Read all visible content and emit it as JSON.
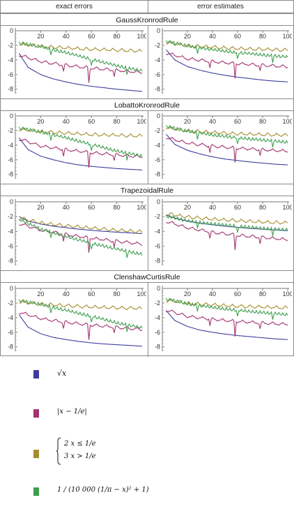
{
  "headers": {
    "exact": "exact errors",
    "estimate": "error estimates"
  },
  "rules": [
    "GaussKronrodRule",
    "LobattoKronrodRule",
    "TrapezoidalRule",
    "ClenshawCurtisRule"
  ],
  "colors": {
    "sqrt": "#3c3c9e",
    "abs": "#a3336f",
    "piecewise": "#a38d2d",
    "runge": "#3e9e4e"
  },
  "legend": {
    "sqrt": "√x",
    "abs": "|x − 1/e|",
    "piecewise_case1": "2   x ≤ 1/e",
    "piecewise_case2": "3   x > 1/e",
    "runge": "1 / (10 000 (1/π − x)² + 1)"
  },
  "chart_data": [
    {
      "type": "line",
      "rule": "GaussKronrodRule",
      "column": "exact errors",
      "xlim": [
        0,
        100
      ],
      "ylim": [
        -8.6,
        0
      ],
      "xticks": [
        20,
        40,
        60,
        80,
        100
      ],
      "yticks": [
        0,
        -2,
        -4,
        -6,
        -8
      ],
      "series": [
        {
          "key": "sqrt",
          "x": [
            3,
            10,
            20,
            30,
            40,
            50,
            60,
            70,
            80,
            90,
            100
          ],
          "y": [
            -3.1,
            -5.0,
            -6.0,
            -6.6,
            -7.0,
            -7.35,
            -7.6,
            -7.8,
            -8.0,
            -8.15,
            -8.3
          ]
        },
        {
          "key": "abs",
          "x": [
            5,
            20,
            40,
            60,
            80,
            100
          ],
          "y": [
            -3.2,
            -4.0,
            -4.5,
            -4.9,
            -5.2,
            -5.5
          ]
        },
        {
          "key": "piecewise",
          "x": [
            5,
            20,
            40,
            60,
            80,
            100
          ],
          "y": [
            -1.6,
            -1.9,
            -2.1,
            -2.3,
            -2.4,
            -2.55
          ]
        },
        {
          "key": "runge",
          "x": [
            5,
            20,
            40,
            60,
            80,
            100
          ],
          "y": [
            -1.5,
            -2.0,
            -2.8,
            -3.7,
            -4.6,
            -5.3
          ]
        }
      ]
    },
    {
      "type": "line",
      "rule": "GaussKronrodRule",
      "column": "error estimates",
      "xlim": [
        0,
        100
      ],
      "ylim": [
        -8.6,
        0
      ],
      "xticks": [
        20,
        40,
        60,
        80,
        100
      ],
      "yticks": [
        0,
        -2,
        -4,
        -6,
        -8
      ],
      "series": [
        {
          "key": "sqrt",
          "x": [
            3,
            10,
            20,
            30,
            40,
            50,
            60,
            70,
            80,
            90,
            100
          ],
          "y": [
            -2.6,
            -4.0,
            -4.9,
            -5.4,
            -5.8,
            -6.1,
            -6.35,
            -6.55,
            -6.75,
            -6.9,
            -7.0
          ]
        },
        {
          "key": "abs",
          "x": [
            5,
            20,
            40,
            60,
            80,
            100
          ],
          "y": [
            -2.9,
            -3.6,
            -4.0,
            -4.3,
            -4.5,
            -4.7
          ]
        },
        {
          "key": "piecewise",
          "x": [
            5,
            20,
            40,
            60,
            80,
            100
          ],
          "y": [
            -1.4,
            -1.8,
            -2.0,
            -2.2,
            -2.3,
            -2.4
          ]
        },
        {
          "key": "runge",
          "x": [
            5,
            20,
            40,
            60,
            80,
            100
          ],
          "y": [
            -1.3,
            -1.9,
            -2.4,
            -2.8,
            -3.1,
            -3.4
          ]
        }
      ]
    },
    {
      "type": "line",
      "rule": "LobattoKronrodRule",
      "column": "exact errors",
      "xlim": [
        0,
        100
      ],
      "ylim": [
        -8.6,
        0
      ],
      "xticks": [
        20,
        40,
        60,
        80,
        100
      ],
      "yticks": [
        0,
        -2,
        -4,
        -6,
        -8
      ],
      "series": [
        {
          "key": "sqrt",
          "x": [
            3,
            10,
            20,
            30,
            40,
            50,
            60,
            70,
            80,
            90,
            100
          ],
          "y": [
            -3.0,
            -4.6,
            -5.5,
            -6.0,
            -6.4,
            -6.7,
            -6.9,
            -7.05,
            -7.2,
            -7.3,
            -7.4
          ]
        },
        {
          "key": "abs",
          "x": [
            5,
            20,
            40,
            60,
            80,
            100
          ],
          "y": [
            -3.0,
            -3.9,
            -4.4,
            -4.8,
            -5.1,
            -5.4
          ]
        },
        {
          "key": "piecewise",
          "x": [
            5,
            20,
            40,
            60,
            80,
            100
          ],
          "y": [
            -1.6,
            -1.9,
            -2.1,
            -2.3,
            -2.4,
            -2.5
          ]
        },
        {
          "key": "runge",
          "x": [
            5,
            20,
            40,
            60,
            80,
            100
          ],
          "y": [
            -1.5,
            -2.0,
            -2.8,
            -3.7,
            -4.6,
            -5.3
          ]
        }
      ]
    },
    {
      "type": "line",
      "rule": "LobattoKronrodRule",
      "column": "error estimates",
      "xlim": [
        0,
        100
      ],
      "ylim": [
        -8.6,
        0
      ],
      "xticks": [
        20,
        40,
        60,
        80,
        100
      ],
      "yticks": [
        0,
        -2,
        -4,
        -6,
        -8
      ],
      "series": [
        {
          "key": "sqrt",
          "x": [
            3,
            10,
            20,
            30,
            40,
            50,
            60,
            70,
            80,
            90,
            100
          ],
          "y": [
            -2.5,
            -3.9,
            -4.7,
            -5.2,
            -5.6,
            -5.9,
            -6.1,
            -6.3,
            -6.45,
            -6.6,
            -6.7
          ]
        },
        {
          "key": "abs",
          "x": [
            5,
            20,
            40,
            60,
            80,
            100
          ],
          "y": [
            -2.8,
            -3.5,
            -3.9,
            -4.2,
            -4.4,
            -4.6
          ]
        },
        {
          "key": "piecewise",
          "x": [
            5,
            20,
            40,
            60,
            80,
            100
          ],
          "y": [
            -1.4,
            -1.8,
            -2.0,
            -2.2,
            -2.3,
            -2.4
          ]
        },
        {
          "key": "runge",
          "x": [
            5,
            20,
            40,
            60,
            80,
            100
          ],
          "y": [
            -1.3,
            -1.9,
            -2.4,
            -2.8,
            -3.1,
            -3.4
          ]
        }
      ]
    },
    {
      "type": "line",
      "rule": "TrapezoidalRule",
      "column": "exact errors",
      "xlim": [
        0,
        100
      ],
      "ylim": [
        -8.6,
        0
      ],
      "xticks": [
        20,
        40,
        60,
        80,
        100
      ],
      "yticks": [
        0,
        -2,
        -4,
        -6,
        -8
      ],
      "series": [
        {
          "key": "sqrt",
          "x": [
            3,
            10,
            20,
            30,
            40,
            50,
            60,
            70,
            80,
            90,
            100
          ],
          "y": [
            -2.0,
            -2.6,
            -3.0,
            -3.3,
            -3.5,
            -3.7,
            -3.85,
            -4.0,
            -4.1,
            -4.2,
            -4.3
          ]
        },
        {
          "key": "abs",
          "x": [
            5,
            20,
            40,
            60,
            80,
            100
          ],
          "y": [
            -2.8,
            -3.6,
            -4.2,
            -4.7,
            -5.1,
            -5.5
          ]
        },
        {
          "key": "piecewise",
          "x": [
            5,
            20,
            40,
            60,
            80,
            100
          ],
          "y": [
            -2.0,
            -2.6,
            -3.0,
            -3.3,
            -3.6,
            -3.8
          ]
        },
        {
          "key": "runge",
          "x": [
            5,
            20,
            40,
            60,
            80,
            100
          ],
          "y": [
            -2.3,
            -3.5,
            -4.5,
            -5.4,
            -6.2,
            -6.9
          ]
        }
      ]
    },
    {
      "type": "line",
      "rule": "TrapezoidalRule",
      "column": "error estimates",
      "xlim": [
        0,
        100
      ],
      "ylim": [
        -8.6,
        0
      ],
      "xticks": [
        20,
        40,
        60,
        80,
        100
      ],
      "yticks": [
        0,
        -2,
        -4,
        -6,
        -8
      ],
      "series": [
        {
          "key": "sqrt",
          "x": [
            3,
            10,
            20,
            30,
            40,
            50,
            60,
            70,
            80,
            90,
            100
          ],
          "y": [
            -1.8,
            -2.2,
            -2.6,
            -2.9,
            -3.1,
            -3.3,
            -3.45,
            -3.6,
            -3.7,
            -3.8,
            -3.9
          ]
        },
        {
          "key": "abs",
          "x": [
            5,
            20,
            40,
            60,
            80,
            100
          ],
          "y": [
            -2.5,
            -3.3,
            -3.9,
            -4.3,
            -4.6,
            -4.9
          ]
        },
        {
          "key": "piecewise",
          "x": [
            5,
            20,
            40,
            60,
            80,
            100
          ],
          "y": [
            -1.4,
            -1.8,
            -2.1,
            -2.3,
            -2.5,
            -2.6
          ]
        },
        {
          "key": "runge",
          "x": [
            5,
            20,
            40,
            60,
            80,
            100
          ],
          "y": [
            -1.8,
            -2.4,
            -2.8,
            -3.1,
            -3.4,
            -3.6
          ]
        }
      ]
    },
    {
      "type": "line",
      "rule": "ClenshawCurtisRule",
      "column": "exact errors",
      "xlim": [
        0,
        100
      ],
      "ylim": [
        -8.6,
        0
      ],
      "xticks": [
        20,
        40,
        60,
        80,
        100
      ],
      "yticks": [
        0,
        -2,
        -4,
        -6,
        -8
      ],
      "series": [
        {
          "key": "sqrt",
          "x": [
            3,
            10,
            20,
            30,
            40,
            50,
            60,
            70,
            80,
            90,
            100
          ],
          "y": [
            -3.6,
            -5.3,
            -6.2,
            -6.7,
            -7.0,
            -7.25,
            -7.45,
            -7.6,
            -7.7,
            -7.8,
            -7.9
          ]
        },
        {
          "key": "abs",
          "x": [
            5,
            20,
            40,
            60,
            80,
            100
          ],
          "y": [
            -3.1,
            -3.9,
            -4.4,
            -4.8,
            -5.1,
            -5.4
          ]
        },
        {
          "key": "piecewise",
          "x": [
            5,
            20,
            40,
            60,
            80,
            100
          ],
          "y": [
            -1.6,
            -1.9,
            -2.1,
            -2.3,
            -2.4,
            -2.5
          ]
        },
        {
          "key": "runge",
          "x": [
            5,
            20,
            40,
            60,
            80,
            100
          ],
          "y": [
            -1.5,
            -2.0,
            -2.8,
            -3.6,
            -4.5,
            -5.2
          ]
        }
      ]
    },
    {
      "type": "line",
      "rule": "ClenshawCurtisRule",
      "column": "error estimates",
      "xlim": [
        0,
        100
      ],
      "ylim": [
        -8.6,
        0
      ],
      "xticks": [
        20,
        40,
        60,
        80,
        100
      ],
      "yticks": [
        0,
        -2,
        -4,
        -6,
        -8
      ],
      "series": [
        {
          "key": "sqrt",
          "x": [
            3,
            10,
            20,
            30,
            40,
            50,
            60,
            70,
            80,
            90,
            100
          ],
          "y": [
            -3.0,
            -4.4,
            -5.2,
            -5.7,
            -6.0,
            -6.25,
            -6.45,
            -6.6,
            -6.75,
            -6.9,
            -7.0
          ]
        },
        {
          "key": "abs",
          "x": [
            5,
            20,
            40,
            60,
            80,
            100
          ],
          "y": [
            -2.8,
            -3.6,
            -4.0,
            -4.3,
            -4.5,
            -4.7
          ]
        },
        {
          "key": "piecewise",
          "x": [
            5,
            20,
            40,
            60,
            80,
            100
          ],
          "y": [
            -1.4,
            -1.8,
            -2.0,
            -2.2,
            -2.3,
            -2.4
          ]
        },
        {
          "key": "runge",
          "x": [
            5,
            20,
            40,
            60,
            80,
            100
          ],
          "y": [
            -1.3,
            -1.9,
            -2.4,
            -2.8,
            -3.1,
            -3.4
          ]
        }
      ]
    }
  ]
}
